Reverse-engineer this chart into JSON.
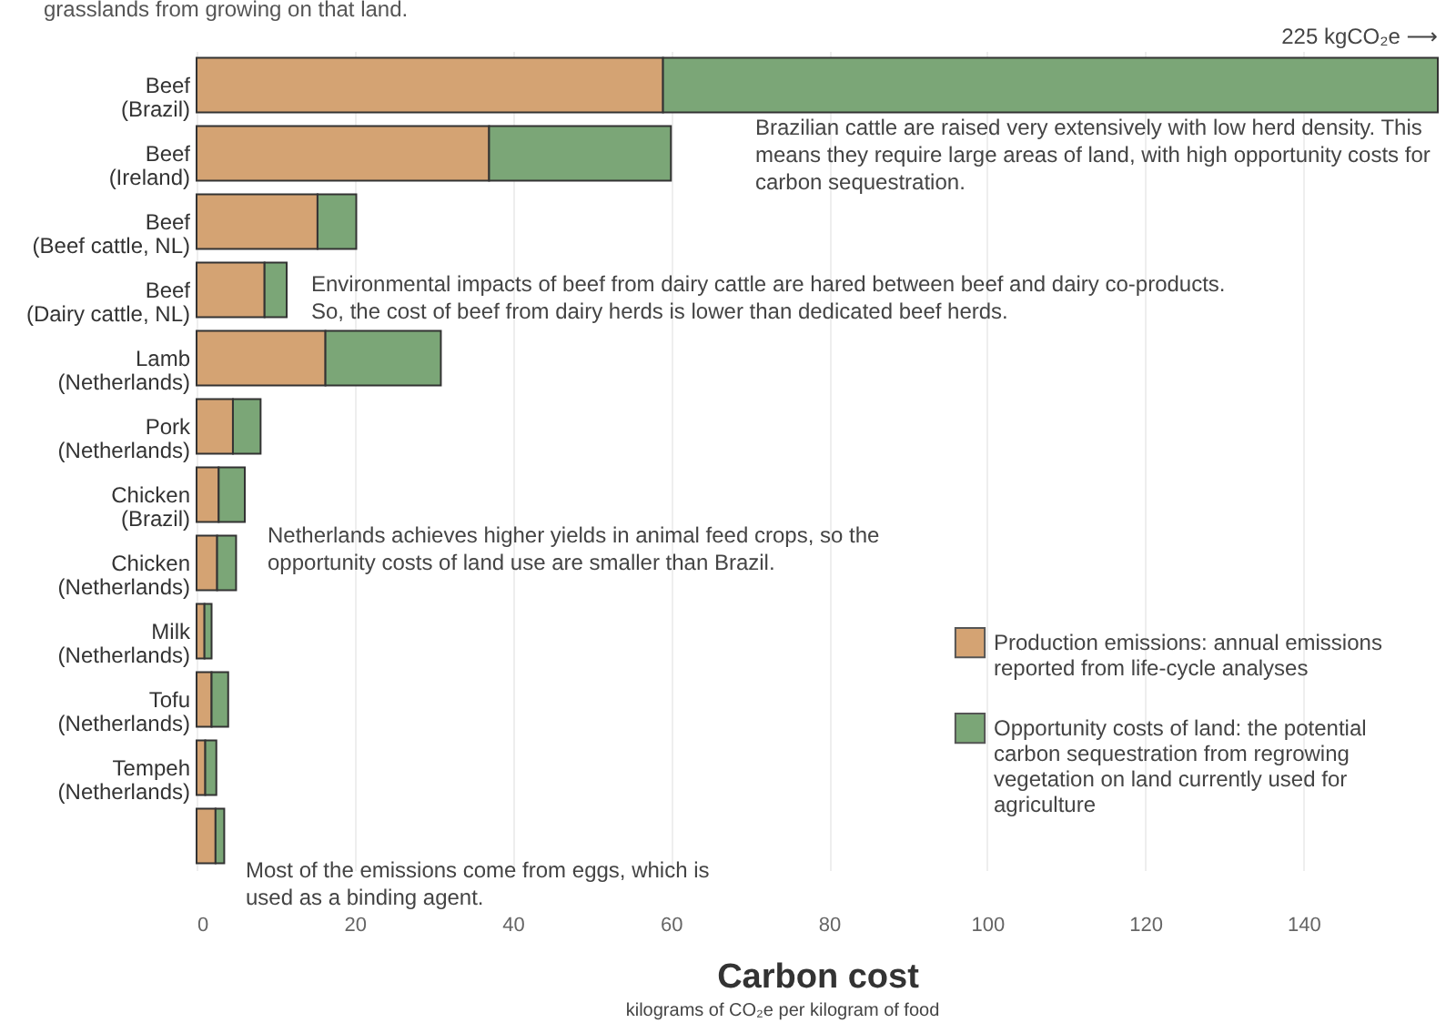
{
  "chart_data": {
    "type": "bar",
    "orientation": "horizontal",
    "stacked": true,
    "subtitle": "grasslands from growing on that land.",
    "xlabel": "Carbon cost",
    "categories": [
      "Beef (Brazil)",
      "Beef (Ireland)",
      "Beef (Beef cattle, NL)",
      "Beef (Dairy cattle, NL)",
      "Lamb (Netherlands)",
      "Pork (Netherlands)",
      "Chicken (Brazil)",
      "Chicken (Netherlands)",
      "Milk (Netherlands)",
      "Tofu (Netherlands)",
      "Tempeh (Netherlands)",
      null
    ],
    "series": [
      {
        "name": "Production emissions: annual emissions reported from life-cycle analyses",
        "color": "#d4a373",
        "values": [
          59,
          37,
          15.3,
          8.6,
          16.3,
          4.6,
          2.8,
          2.6,
          1.0,
          1.9,
          1.1,
          2.4
        ]
      },
      {
        "name": "Opportunity costs of land: the potential carbon sequestration from regrowing vegetation on land currently used for agriculture",
        "color": "#7ba677",
        "values": [
          98,
          23,
          4.9,
          2.8,
          14.6,
          3.5,
          3.3,
          2.4,
          0.9,
          2.1,
          1.4,
          1.1
        ]
      }
    ],
    "xlim": [
      0,
      157
    ],
    "xticks": [
      0,
      20,
      40,
      60,
      80,
      100,
      120,
      140
    ],
    "grid": "x",
    "legend": "bottom right",
    "annotations": [
      "225 kgCO₂e ⟶",
      "Brazilian cattle are raised very extensively with low herd density. This means they require large areas of land, with high opportunity costs for carbon sequestration.",
      "Environmental impacts of beef from dairy cattle are hared between beef and dairy co-products. So, the cost of beef from dairy herds is lower than dedicated beef herds.",
      "Netherlands achieves higher yields in animal feed crops, so the opportunity costs of land use are smaller than Brazil.",
      "Most of the emissions come from eggs, which is used as a binding agent.",
      "kilograms of CO₂e per kilogram of food"
    ]
  }
}
